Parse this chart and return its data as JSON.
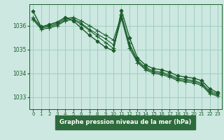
{
  "background_color": "#cce8e0",
  "plot_bg_color": "#cce8e0",
  "footer_bg_color": "#2d6b3c",
  "grid_color": "#99ccbb",
  "line_color": "#1a5c2a",
  "xlabel": "Graphe pression niveau de la mer (hPa)",
  "xlim": [
    -0.5,
    23.5
  ],
  "ylim": [
    1032.5,
    1036.9
  ],
  "yticks": [
    1033,
    1034,
    1035,
    1036
  ],
  "xticks": [
    0,
    1,
    2,
    3,
    4,
    5,
    6,
    7,
    8,
    9,
    10,
    11,
    12,
    13,
    14,
    15,
    16,
    17,
    18,
    19,
    20,
    21,
    22,
    23
  ],
  "series": [
    {
      "x": [
        0,
        1,
        2,
        3,
        4,
        5,
        6,
        7,
        8,
        9,
        10,
        11,
        12,
        13,
        14,
        15,
        16,
        17,
        18,
        19,
        20,
        21,
        22,
        23
      ],
      "y": [
        1036.6,
        1035.95,
        1036.05,
        1036.15,
        1036.35,
        1036.2,
        1035.9,
        1035.6,
        1035.35,
        1035.1,
        1034.95,
        1036.65,
        1035.5,
        1034.65,
        1034.35,
        1034.2,
        1034.15,
        1034.05,
        1033.9,
        1033.85,
        1033.8,
        1033.7,
        1033.35,
        1033.2
      ],
      "marker": "D",
      "markersize": 2.5,
      "linewidth": 1.0
    },
    {
      "x": [
        0,
        1,
        2,
        3,
        4,
        5,
        6,
        7,
        8,
        9,
        10,
        11,
        12,
        13,
        14,
        15,
        16,
        17,
        18,
        19,
        20,
        21,
        22,
        23
      ],
      "y": [
        1036.35,
        1035.95,
        1036.0,
        1036.1,
        1036.3,
        1036.35,
        1036.2,
        1036.0,
        1035.8,
        1035.6,
        1035.4,
        1036.45,
        1035.25,
        1034.55,
        1034.25,
        1034.1,
        1034.05,
        1033.95,
        1033.8,
        1033.75,
        1033.7,
        1033.6,
        1033.25,
        1033.15
      ],
      "marker": "+",
      "markersize": 4,
      "linewidth": 0.8
    },
    {
      "x": [
        0,
        1,
        2,
        3,
        4,
        5,
        6,
        7,
        8,
        9,
        10,
        11,
        12,
        13,
        14,
        15,
        16,
        17,
        18,
        19,
        20,
        21,
        22,
        23
      ],
      "y": [
        1036.3,
        1035.9,
        1035.95,
        1036.05,
        1036.25,
        1036.3,
        1036.1,
        1035.85,
        1035.65,
        1035.45,
        1035.2,
        1036.4,
        1035.15,
        1034.5,
        1034.2,
        1034.05,
        1034.0,
        1033.9,
        1033.75,
        1033.7,
        1033.65,
        1033.55,
        1033.2,
        1033.1
      ],
      "marker": ".",
      "markersize": 3,
      "linewidth": 0.8
    },
    {
      "x": [
        0,
        1,
        2,
        3,
        4,
        5,
        6,
        7,
        8,
        9,
        10,
        11,
        12,
        13,
        14,
        15,
        16,
        17,
        18,
        19,
        20,
        21,
        22,
        23
      ],
      "y": [
        1036.25,
        1035.85,
        1035.9,
        1036.0,
        1036.2,
        1036.25,
        1036.05,
        1035.8,
        1035.55,
        1035.3,
        1035.05,
        1036.3,
        1035.05,
        1034.45,
        1034.15,
        1034.0,
        1033.95,
        1033.85,
        1033.7,
        1033.65,
        1033.6,
        1033.5,
        1033.15,
        1033.05
      ],
      "marker": "+",
      "markersize": 4,
      "linewidth": 0.8
    }
  ]
}
